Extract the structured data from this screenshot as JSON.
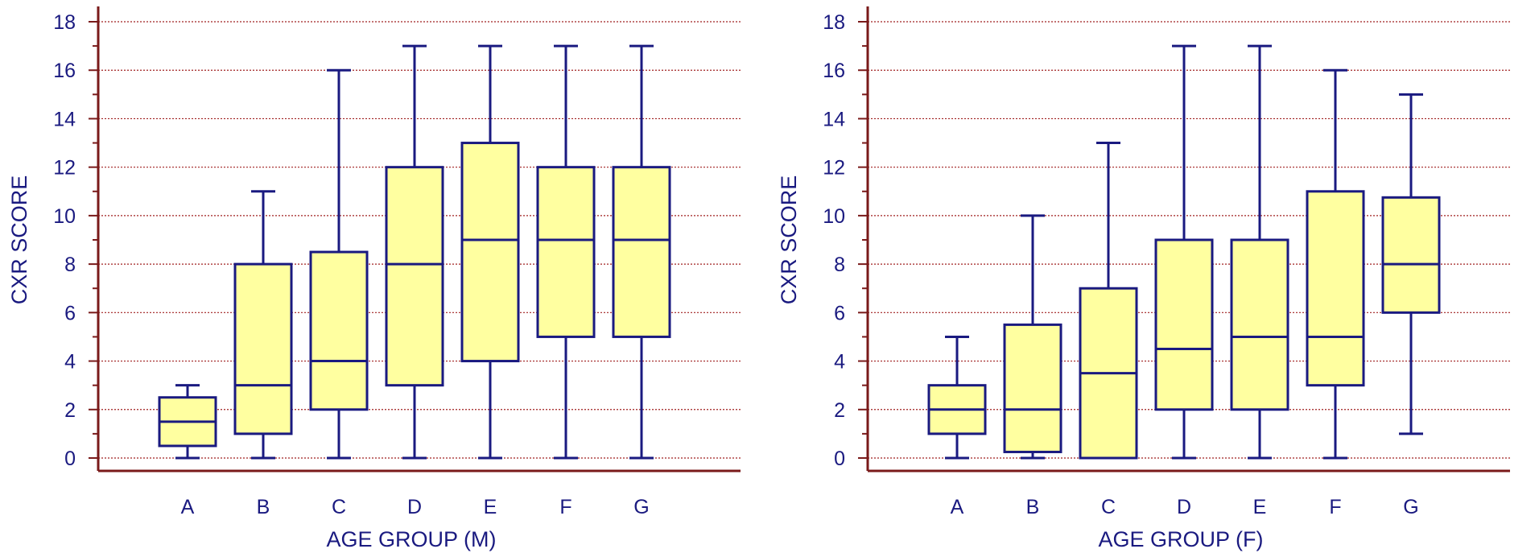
{
  "colors": {
    "axis": "#7a1a1a",
    "grid": "#a02020",
    "box_fill": "#ffffa0",
    "box_stroke": "#1a1a80",
    "text": "#1a1a80"
  },
  "chart_data": [
    {
      "type": "box",
      "xlabel": "AGE GROUP (M)",
      "ylabel": "CXR SCORE",
      "ylim": [
        0,
        18
      ],
      "yticks": [
        "0",
        "2",
        "4",
        "6",
        "8",
        "10",
        "12",
        "14",
        "16",
        "18"
      ],
      "grid": "horizontal-dotted",
      "categories": [
        "A",
        "B",
        "C",
        "D",
        "E",
        "F",
        "G"
      ],
      "boxes": [
        {
          "min": 0,
          "q1": 0.5,
          "median": 1.5,
          "q3": 2.5,
          "max": 3
        },
        {
          "min": 0,
          "q1": 1,
          "median": 3,
          "q3": 8,
          "max": 11
        },
        {
          "min": 0,
          "q1": 2,
          "median": 4,
          "q3": 8.5,
          "max": 16
        },
        {
          "min": 0,
          "q1": 3,
          "median": 8,
          "q3": 12,
          "max": 17
        },
        {
          "min": 0,
          "q1": 4,
          "median": 9,
          "q3": 13,
          "max": 17
        },
        {
          "min": 0,
          "q1": 5,
          "median": 9,
          "q3": 12,
          "max": 17
        },
        {
          "min": 0,
          "q1": 5,
          "median": 9,
          "q3": 12,
          "max": 17
        }
      ]
    },
    {
      "type": "box",
      "xlabel": "AGE GROUP (F)",
      "ylabel": "CXR SCORE",
      "ylim": [
        0,
        18
      ],
      "yticks": [
        "0",
        "2",
        "4",
        "6",
        "8",
        "10",
        "12",
        "14",
        "16",
        "18"
      ],
      "grid": "horizontal-dotted",
      "categories": [
        "A",
        "B",
        "C",
        "D",
        "E",
        "F",
        "G"
      ],
      "boxes": [
        {
          "min": 0,
          "q1": 1,
          "median": 2,
          "q3": 3,
          "max": 5
        },
        {
          "min": 0,
          "q1": 0.25,
          "median": 2,
          "q3": 5.5,
          "max": 10
        },
        {
          "min": 0,
          "q1": 0,
          "median": 3.5,
          "q3": 7,
          "max": 13
        },
        {
          "min": 0,
          "q1": 2,
          "median": 4.5,
          "q3": 9,
          "max": 17
        },
        {
          "min": 0,
          "q1": 2,
          "median": 5,
          "q3": 9,
          "max": 17
        },
        {
          "min": 0,
          "q1": 3,
          "median": 5,
          "q3": 11,
          "max": 16
        },
        {
          "min": 1,
          "q1": 6,
          "median": 8,
          "q3": 10.75,
          "max": 15
        }
      ]
    }
  ]
}
